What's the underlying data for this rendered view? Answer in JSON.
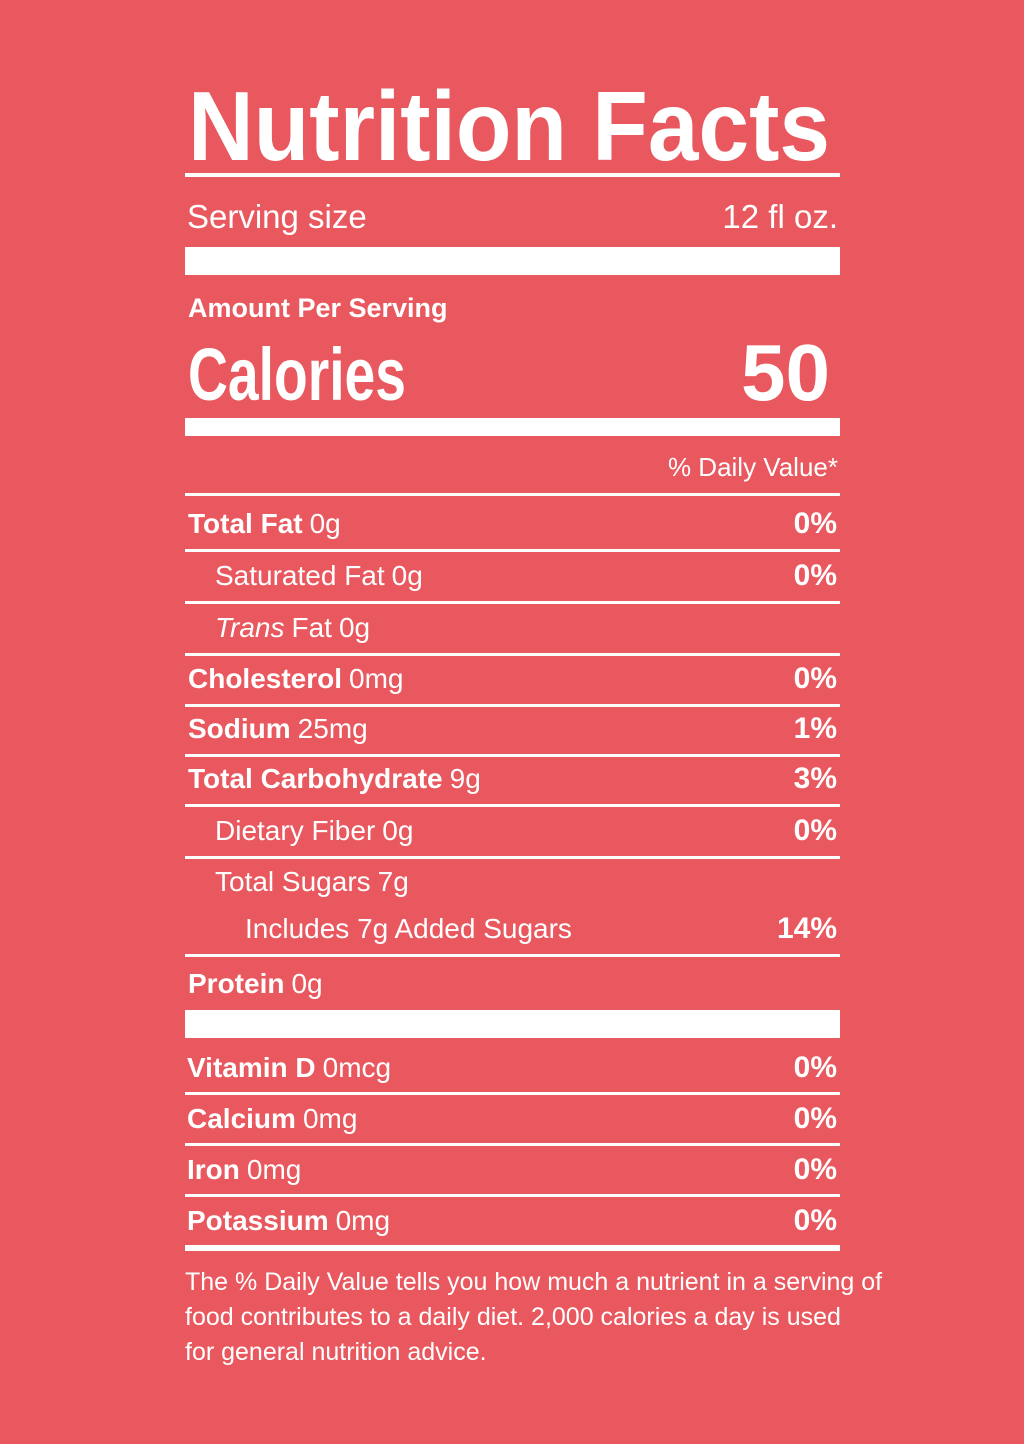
{
  "title": "Nutrition Facts",
  "serving": {
    "label": "Serving size",
    "value": "12 fl oz."
  },
  "amount_per_serving": "Amount Per Serving",
  "calories": {
    "label": "Calories",
    "value": "50"
  },
  "daily_value_header": "% Daily Value*",
  "nutrients": [
    {
      "name": "Total Fat",
      "amount": "0g",
      "dv": "0%",
      "bold": true,
      "indent": 0
    },
    {
      "name": "Saturated Fat",
      "amount": "0g",
      "dv": "0%",
      "bold": false,
      "indent": 1
    },
    {
      "prefix": "Trans",
      "name": "Fat",
      "amount": "0g",
      "bold": false,
      "indent": 1
    },
    {
      "name": "Cholesterol",
      "amount": "0mg",
      "dv": "0%",
      "bold": true,
      "indent": 0
    },
    {
      "name": "Sodium",
      "amount": "25mg",
      "dv": "1%",
      "bold": true,
      "indent": 0
    },
    {
      "name": "Total Carbohydrate",
      "amount": "9g",
      "dv": "3%",
      "bold": true,
      "indent": 0
    },
    {
      "name": "Dietary Fiber",
      "amount": "0g",
      "dv": "0%",
      "bold": false,
      "indent": 1
    },
    {
      "name": "Total Sugars",
      "amount": "7g",
      "bold": false,
      "indent": 1
    },
    {
      "name": "Includes 7g Added Sugars",
      "dv": "14%",
      "bold": false,
      "indent": 2
    },
    {
      "name": "Protein",
      "amount": "0g",
      "bold": true,
      "indent": 0
    }
  ],
  "vitamins": [
    {
      "name": "Vitamin D",
      "amount": "0mcg",
      "dv": "0%"
    },
    {
      "name": "Calcium",
      "amount": "0mg",
      "dv": "0%"
    },
    {
      "name": "Iron",
      "amount": "0mg",
      "dv": "0%"
    },
    {
      "name": "Potassium",
      "amount": "0mg",
      "dv": "0%"
    }
  ],
  "footnote": [
    "The % Daily Value tells you how much a nutrient in a serving of",
    "food contributes to a daily diet. 2,000 calories a day is used",
    "for general nutrition advice."
  ]
}
